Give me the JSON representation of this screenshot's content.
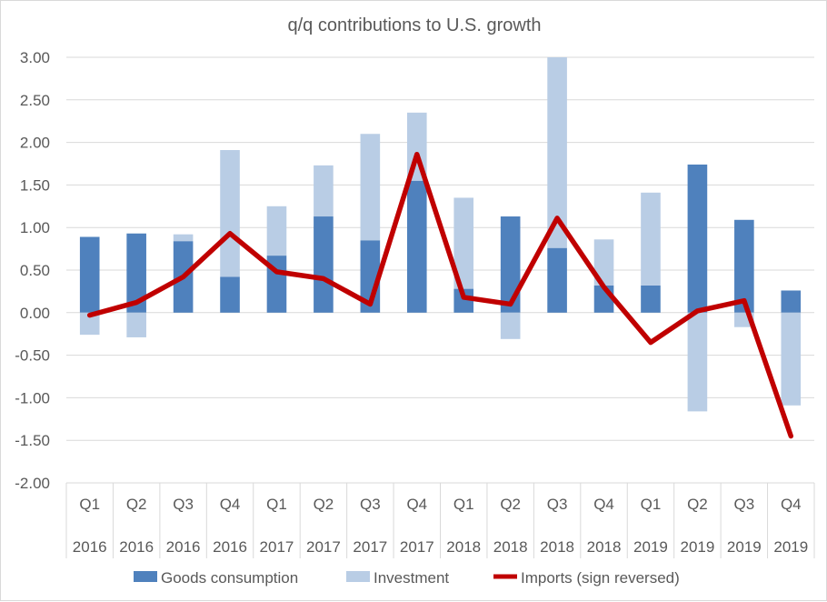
{
  "chart_data": {
    "type": "bar",
    "title": "q/q contributions to U.S. growth",
    "xlabel": "",
    "ylabel": "",
    "ylim": [
      -2.0,
      3.0
    ],
    "yticks": [
      "3.00",
      "2.50",
      "2.00",
      "1.50",
      "1.00",
      "0.50",
      "0.00",
      "-0.50",
      "-1.00",
      "-1.50",
      "-2.00"
    ],
    "ytick_values": [
      3.0,
      2.5,
      2.0,
      1.5,
      1.0,
      0.5,
      0.0,
      -0.5,
      -1.0,
      -1.5,
      -2.0
    ],
    "grid": true,
    "legend_position": "bottom",
    "categories": [
      {
        "q": "Q1",
        "y": "2016"
      },
      {
        "q": "Q2",
        "y": "2016"
      },
      {
        "q": "Q3",
        "y": "2016"
      },
      {
        "q": "Q4",
        "y": "2016"
      },
      {
        "q": "Q1",
        "y": "2017"
      },
      {
        "q": "Q2",
        "y": "2017"
      },
      {
        "q": "Q3",
        "y": "2017"
      },
      {
        "q": "Q4",
        "y": "2017"
      },
      {
        "q": "Q1",
        "y": "2018"
      },
      {
        "q": "Q2",
        "y": "2018"
      },
      {
        "q": "Q3",
        "y": "2018"
      },
      {
        "q": "Q4",
        "y": "2018"
      },
      {
        "q": "Q1",
        "y": "2019"
      },
      {
        "q": "Q2",
        "y": "2019"
      },
      {
        "q": "Q3",
        "y": "2019"
      },
      {
        "q": "Q4",
        "y": "2019"
      }
    ],
    "series": [
      {
        "name": "Goods consumption",
        "type": "stacked-bar",
        "color": "#4f81bd",
        "values": [
          0.89,
          0.93,
          0.84,
          0.42,
          0.67,
          1.13,
          0.85,
          1.55,
          0.28,
          1.13,
          0.76,
          0.32,
          0.32,
          1.74,
          1.09,
          0.26
        ]
      },
      {
        "name": "Investment",
        "type": "stacked-bar",
        "color": "#b9cde5",
        "values": [
          -0.26,
          -0.29,
          0.08,
          1.49,
          0.58,
          0.6,
          1.25,
          0.8,
          1.07,
          -0.31,
          2.3,
          0.54,
          1.09,
          -1.16,
          -0.17,
          -1.09
        ]
      },
      {
        "name": "Imports (sign reversed)",
        "type": "line",
        "color": "#c00000",
        "values": [
          -0.03,
          0.12,
          0.42,
          0.93,
          0.48,
          0.4,
          0.1,
          1.86,
          0.18,
          0.1,
          1.11,
          0.3,
          -0.35,
          0.02,
          0.14,
          -1.45
        ]
      }
    ]
  }
}
